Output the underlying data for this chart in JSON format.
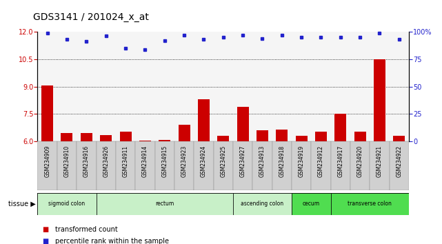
{
  "title": "GDS3141 / 201024_x_at",
  "samples": [
    "GSM234909",
    "GSM234910",
    "GSM234916",
    "GSM234926",
    "GSM234911",
    "GSM234914",
    "GSM234915",
    "GSM234923",
    "GSM234924",
    "GSM234925",
    "GSM234927",
    "GSM234913",
    "GSM234918",
    "GSM234919",
    "GSM234912",
    "GSM234917",
    "GSM234920",
    "GSM234921",
    "GSM234922"
  ],
  "transformed_count": [
    9.05,
    6.45,
    6.45,
    6.35,
    6.55,
    6.05,
    6.1,
    6.9,
    8.3,
    6.3,
    7.9,
    6.6,
    6.65,
    6.3,
    6.55,
    7.5,
    6.55,
    10.5,
    6.3
  ],
  "percentile_rank": [
    99,
    93,
    91,
    96,
    85,
    84,
    92,
    97,
    93,
    95,
    97,
    94,
    97,
    95,
    95,
    95,
    95,
    99,
    93
  ],
  "tissue_groups": [
    {
      "label": "sigmoid colon",
      "start": 0,
      "end": 3,
      "color": "#c8f0c8"
    },
    {
      "label": "rectum",
      "start": 3,
      "end": 10,
      "color": "#c8f0c8"
    },
    {
      "label": "ascending colon",
      "start": 10,
      "end": 13,
      "color": "#c8f0c8"
    },
    {
      "label": "cecum",
      "start": 13,
      "end": 15,
      "color": "#50dd50"
    },
    {
      "label": "transverse colon",
      "start": 15,
      "end": 19,
      "color": "#50dd50"
    }
  ],
  "ylim_left": [
    6,
    12
  ],
  "ylim_right": [
    0,
    100
  ],
  "yticks_left": [
    6,
    7.5,
    9,
    10.5,
    12
  ],
  "yticks_right": [
    0,
    25,
    50,
    75,
    100
  ],
  "bar_color": "#cc0000",
  "dot_color": "#2222cc",
  "plot_bg": "#f5f5f5",
  "title_fontsize": 10,
  "tick_fontsize": 7,
  "sample_fontsize": 5.5
}
